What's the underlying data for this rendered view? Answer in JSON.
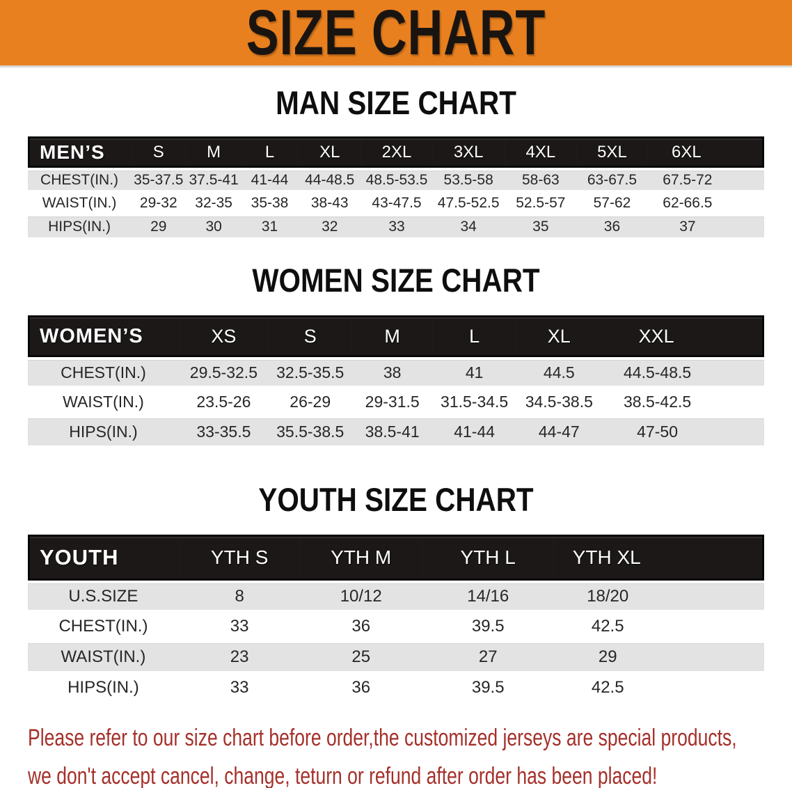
{
  "banner": {
    "title": "SIZE CHART"
  },
  "tables": {
    "men": {
      "section_title": "MAN SIZE CHART",
      "header": [
        "MEN’S",
        "S",
        "M",
        "L",
        "XL",
        "2XL",
        "3XL",
        "4XL",
        "5XL",
        "6XL"
      ],
      "rows": [
        {
          "label": "CHEST(IN.)",
          "values": [
            "35-37.5",
            "37.5-41",
            "41-44",
            "44-48.5",
            "48.5-53.5",
            "53.5-58",
            "58-63",
            "63-67.5",
            "67.5-72"
          ]
        },
        {
          "label": "WAIST(IN.)",
          "values": [
            "29-32",
            "32-35",
            "35-38",
            "38-43",
            "43-47.5",
            "47.5-52.5",
            "52.5-57",
            "57-62",
            "62-66.5"
          ]
        },
        {
          "label": "HIPS(IN.)",
          "values": [
            "29",
            "30",
            "31",
            "32",
            "33",
            "34",
            "35",
            "36",
            "37"
          ]
        }
      ]
    },
    "women": {
      "section_title": "WOMEN SIZE CHART",
      "header": [
        "WOMEN’S",
        "XS",
        "S",
        "M",
        "L",
        "XL",
        "XXL"
      ],
      "rows": [
        {
          "label": "CHEST(IN.)",
          "values": [
            "29.5-32.5",
            "32.5-35.5",
            "38",
            "41",
            "44.5",
            "44.5-48.5"
          ]
        },
        {
          "label": "WAIST(IN.)",
          "values": [
            "23.5-26",
            "26-29",
            "29-31.5",
            "31.5-34.5",
            "34.5-38.5",
            "38.5-42.5"
          ]
        },
        {
          "label": "HIPS(IN.)",
          "values": [
            "33-35.5",
            "35.5-38.5",
            "38.5-41",
            "41-44",
            "44-47",
            "47-50"
          ]
        }
      ]
    },
    "youth": {
      "section_title": "YOUTH SIZE CHART",
      "header": [
        "YOUTH",
        "YTH S",
        "YTH M",
        "YTH L",
        "YTH XL"
      ],
      "rows": [
        {
          "label": "U.S.SIZE",
          "values": [
            "8",
            "10/12",
            "14/16",
            "18/20"
          ]
        },
        {
          "label": "CHEST(IN.)",
          "values": [
            "33",
            "36",
            "39.5",
            "42.5"
          ]
        },
        {
          "label": "WAIST(IN.)",
          "values": [
            "23",
            "25",
            "27",
            "29"
          ]
        },
        {
          "label": "HIPS(IN.)",
          "values": [
            "33",
            "36",
            "39.5",
            "42.5"
          ]
        }
      ]
    }
  },
  "disclaimer": {
    "line1": "Please refer to our size chart before order,the customized jerseys are special products,",
    "line2": "we don't accept cancel, change, teturn or refund after order has been placed!"
  },
  "colors": {
    "banner_bg": "#E8801F",
    "banner_text": "#1A1411",
    "header_bg": "#1C1818",
    "header_text": "#FFFFFF",
    "row_shade": "#E3E3E3",
    "row_plain": "#FFFFFF",
    "body_text": "#262626",
    "disclaimer_text": "#A5302A"
  }
}
